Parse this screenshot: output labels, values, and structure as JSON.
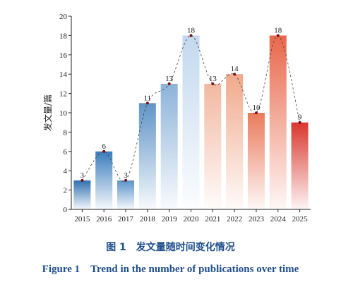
{
  "chart_data": {
    "type": "bar",
    "categories": [
      "2015",
      "2016",
      "2017",
      "2018",
      "2019",
      "2020",
      "2021",
      "2022",
      "2023",
      "2024",
      "2025"
    ],
    "values": [
      3,
      6,
      3,
      11,
      13,
      18,
      13,
      14,
      10,
      18,
      9
    ],
    "ylabel": "发文量/篇",
    "ylim": [
      0,
      20
    ],
    "yticks": [
      0,
      2,
      4,
      6,
      8,
      10,
      12,
      14,
      16,
      18,
      20
    ],
    "trend_line": "dashed smooth curve through bar tops",
    "bar_colors": {
      "2015": "#2f6fb0",
      "2016": "#3b7dbd",
      "2017": "#5a93c9",
      "2018": "#5f94c7",
      "2019": "#8cb3d9",
      "2020": "#c3d8ee",
      "2021": "#f2b8a0",
      "2022": "#f0a98c",
      "2023": "#ea7a5c",
      "2024": "#e8684a",
      "2025": "#d9362d"
    },
    "grid": false
  },
  "caption": {
    "cn": "图 1　发文量随时间变化情况",
    "en": "Figure 1　Trend in the number of publications over time"
  }
}
